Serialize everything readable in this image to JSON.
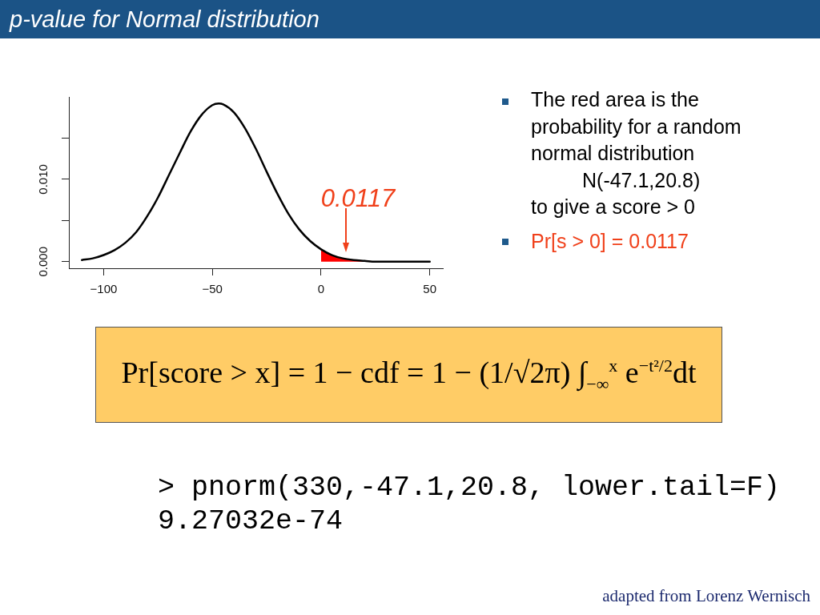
{
  "chart_data": {
    "type": "line",
    "title": "p-value for Normal distribution",
    "series": [
      {
        "color": "#000000",
        "x": [
          -110,
          -105,
          -100,
          -95,
          -90,
          -85,
          -80,
          -75,
          -70,
          -65,
          -60,
          -55,
          -50,
          -47.1,
          -45,
          -40,
          -35,
          -30,
          -25,
          -20,
          -15,
          -10,
          -5,
          0,
          5,
          10,
          15,
          20,
          25,
          30,
          35,
          40,
          45,
          50
        ],
        "values": [
          0.0002,
          0.0004,
          0.0008,
          0.0014,
          0.0023,
          0.0036,
          0.0055,
          0.0078,
          0.0105,
          0.0132,
          0.0158,
          0.0178,
          0.019,
          0.0192,
          0.0191,
          0.0181,
          0.0162,
          0.0137,
          0.0109,
          0.0082,
          0.0058,
          0.0039,
          0.0025,
          0.0015,
          0.0008,
          0.0004,
          0.0002,
          0.0001,
          0,
          0,
          0,
          0,
          0,
          0
        ]
      },
      {
        "type": "area",
        "color": "#ff0000",
        "x": [
          0,
          5,
          10,
          15,
          20,
          25,
          30,
          35,
          40,
          45,
          50
        ],
        "values": [
          0.0015,
          0.0008,
          0.0004,
          0.0002,
          0.0001,
          0,
          0,
          0,
          0,
          0,
          0
        ]
      }
    ],
    "xlim": [
      -116,
      56
    ],
    "ylim": [
      -0.0008,
      0.02
    ],
    "xticks": [
      {
        "value": -100,
        "label": "−100"
      },
      {
        "value": -50,
        "label": "−50"
      },
      0,
      50
    ],
    "yticks": [
      {
        "value": 0,
        "label": "0.000"
      },
      {
        "value": 0.005,
        "label": null
      },
      {
        "value": 0.01,
        "label": "0.010"
      },
      {
        "value": 0.015,
        "label": null
      }
    ],
    "annotations": [
      "0.0117",
      "The red area is the probability for a random normal distribution",
      "N(-47.1,20.8)",
      "to give a score > 0",
      "Pr[s > 0] = 0.0117",
      "Pr[score > x] = 1 − cdf = 1 − (1/√2π) ∫$_{−∞}$$^{x}$ e$^{−t²/2}$dt",
      "> pnorm(330,-47.1,20.8, lower.tail=F)",
      "9.27032e-74",
      "adapted from Lorenz Wernisch"
    ]
  }
}
